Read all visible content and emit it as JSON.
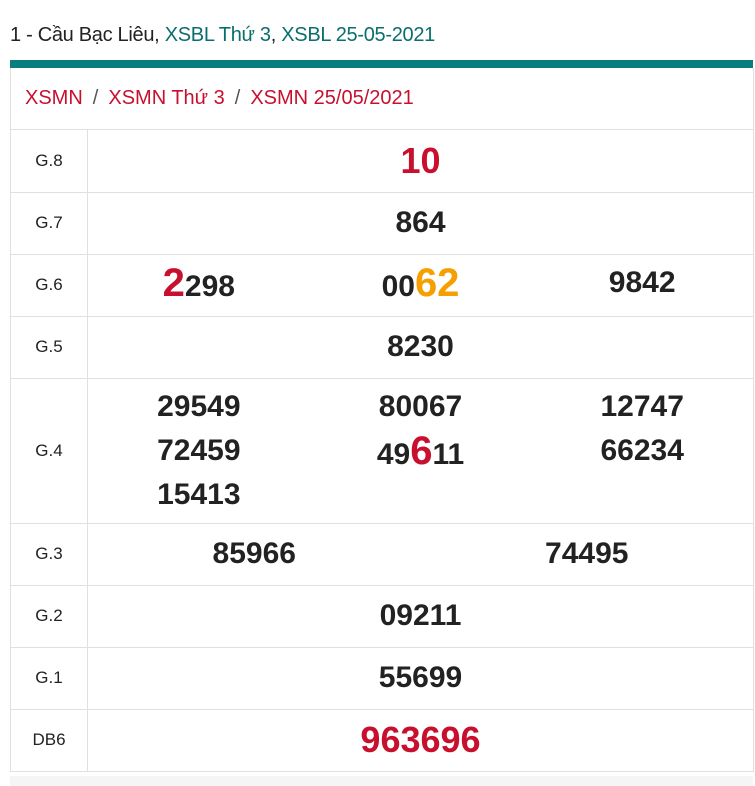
{
  "header": {
    "prefix": "1 - Cầu Bạc Liêu, ",
    "link1": "XSBL Thứ 3",
    "comma": ", ",
    "link2": "XSBL 25-05-2021"
  },
  "breadcrumb": [
    {
      "label": "XSMN"
    },
    {
      "label": "XSMN Thứ 3"
    },
    {
      "label": "XSMN 25/05/2021"
    }
  ],
  "breadcrumb_sep": "/",
  "colors": {
    "accent": "#0a7e7e",
    "red": "#c8102e",
    "orange": "#f5a000"
  },
  "prizes": [
    {
      "label": "G.8",
      "cols": [
        [
          [
            {
              "t": "10",
              "style": "redall"
            }
          ]
        ]
      ]
    },
    {
      "label": "G.7",
      "cols": [
        [
          [
            {
              "t": "864"
            }
          ]
        ]
      ]
    },
    {
      "label": "G.6",
      "cols": [
        [
          [
            {
              "t": "2",
              "hl": "red"
            },
            {
              "t": "298"
            }
          ]
        ],
        [
          [
            {
              "t": "00"
            },
            {
              "t": "62",
              "hl": "orange"
            }
          ]
        ],
        [
          [
            {
              "t": "9842"
            }
          ]
        ]
      ]
    },
    {
      "label": "G.5",
      "cols": [
        [
          [
            {
              "t": "8230"
            }
          ]
        ]
      ]
    },
    {
      "label": "G.4",
      "cols": [
        [
          [
            {
              "t": "29549"
            }
          ],
          [
            {
              "t": "72459"
            }
          ],
          [
            {
              "t": "15413"
            }
          ]
        ],
        [
          [
            {
              "t": "80067"
            }
          ],
          [
            {
              "t": "49"
            },
            {
              "t": "6",
              "hl": "red"
            },
            {
              "t": "11"
            }
          ]
        ],
        [
          [
            {
              "t": "12747"
            }
          ],
          [
            {
              "t": "66234"
            }
          ]
        ]
      ]
    },
    {
      "label": "G.3",
      "cols": [
        [
          [
            {
              "t": "85966"
            }
          ]
        ],
        [
          [
            {
              "t": "74495"
            }
          ]
        ]
      ]
    },
    {
      "label": "G.2",
      "cols": [
        [
          [
            {
              "t": "09211"
            }
          ]
        ]
      ]
    },
    {
      "label": "G.1",
      "cols": [
        [
          [
            {
              "t": "55699"
            }
          ]
        ]
      ]
    },
    {
      "label": "DB6",
      "cols": [
        [
          [
            {
              "t": "963696",
              "style": "redall"
            }
          ]
        ]
      ]
    }
  ]
}
